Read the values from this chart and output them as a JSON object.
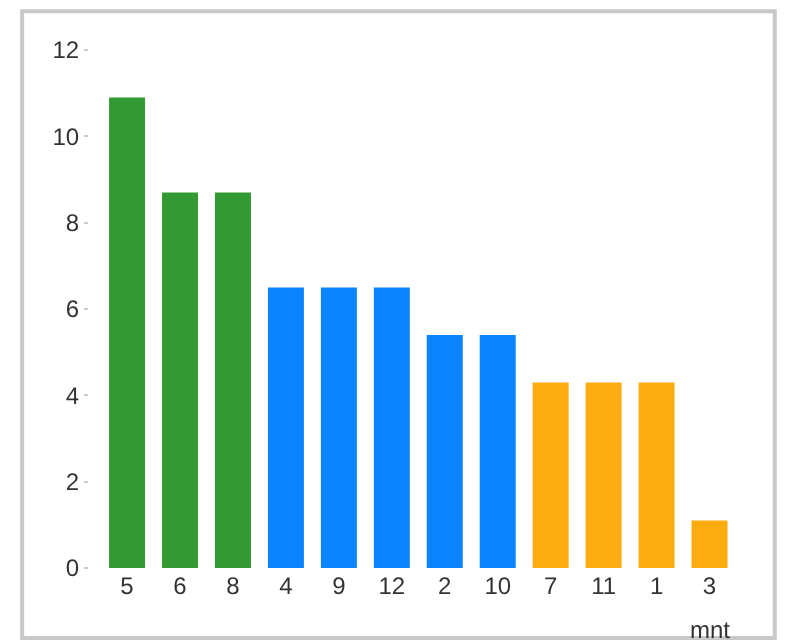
{
  "chart_data": {
    "type": "bar",
    "xlabel": "mnt",
    "categories": [
      "5",
      "6",
      "8",
      "4",
      "9",
      "12",
      "2",
      "10",
      "7",
      "11",
      "1",
      "3"
    ],
    "values": [
      10.9,
      8.7,
      8.7,
      6.5,
      6.5,
      6.5,
      5.4,
      5.4,
      4.3,
      4.3,
      4.3,
      1.1
    ],
    "colors": [
      "#339933",
      "#339933",
      "#339933",
      "#0a84ff",
      "#0a84ff",
      "#0a84ff",
      "#0a84ff",
      "#0a84ff",
      "#fcab10",
      "#fcab10",
      "#fcab10",
      "#fcab10"
    ],
    "ylim": [
      0,
      12
    ],
    "yticks": [
      0,
      2,
      4,
      6,
      8,
      10,
      12
    ]
  }
}
